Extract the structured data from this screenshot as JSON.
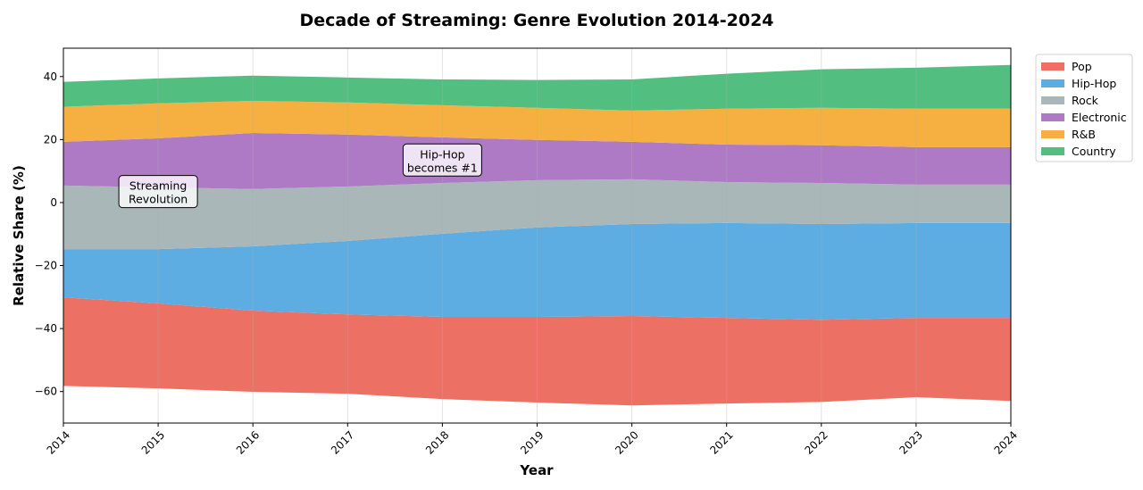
{
  "chart_data": {
    "type": "area",
    "subtype": "streamgraph",
    "title": "Decade of Streaming: Genre Evolution 2014-2024",
    "xlabel": "Year",
    "ylabel": "Relative Share (%)",
    "x": [
      2014,
      2015,
      2016,
      2017,
      2018,
      2019,
      2020,
      2021,
      2022,
      2023,
      2024
    ],
    "xlim": [
      2014,
      2024
    ],
    "ylim": [
      -70,
      49
    ],
    "yticks": [
      -60,
      -40,
      -20,
      0,
      20,
      40
    ],
    "grid": "vertical",
    "legend_position": "outside-top-right",
    "baseline": [
      -58.2,
      -59.0,
      -60.1,
      -60.7,
      -62.4,
      -63.5,
      -64.4,
      -63.8,
      -63.3,
      -61.8,
      -63.0
    ],
    "series": [
      {
        "name": "Pop",
        "color": "#ec7063",
        "values": [
          28.1,
          27.0,
          25.8,
          25.2,
          26.1,
          27.2,
          28.4,
          27.2,
          26.1,
          25.2,
          26.4
        ]
      },
      {
        "name": "Hip-Hop",
        "color": "#5dade2",
        "values": [
          15.3,
          17.2,
          20.4,
          23.3,
          26.4,
          28.4,
          29.2,
          30.1,
          30.4,
          30.1,
          30.1
        ]
      },
      {
        "name": "Rock",
        "color": "#aab7b8",
        "values": [
          20.2,
          19.6,
          18.2,
          17.3,
          16.1,
          15.0,
          14.2,
          13.0,
          13.0,
          12.2,
          12.2
        ]
      },
      {
        "name": "Electronic",
        "color": "#af7ac5",
        "values": [
          13.9,
          15.6,
          17.8,
          16.5,
          14.5,
          12.8,
          11.9,
          11.9,
          12.0,
          11.9,
          11.9
        ]
      },
      {
        "name": "R&B",
        "color": "#f5b041",
        "values": [
          11.1,
          11.1,
          10.2,
          10.2,
          10.2,
          10.2,
          9.9,
          11.4,
          11.9,
          12.2,
          12.2
        ]
      },
      {
        "name": "Country",
        "color": "#52be80",
        "values": [
          7.9,
          7.9,
          8.0,
          7.9,
          8.2,
          8.8,
          9.9,
          11.1,
          12.2,
          13.0,
          13.9
        ]
      }
    ],
    "annotations": [
      {
        "lines": [
          "Streaming",
          "Revolution"
        ],
        "x": 2015,
        "y": 3.5
      },
      {
        "lines": [
          "Hip-Hop",
          "becomes #1"
        ],
        "x": 2018,
        "y": 13.5
      }
    ]
  }
}
